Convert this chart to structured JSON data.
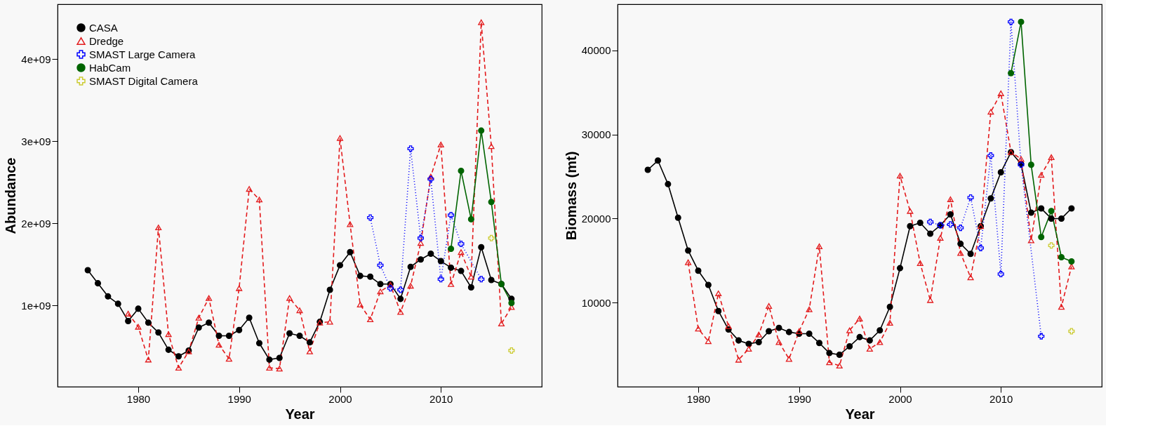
{
  "chart_data": [
    {
      "type": "line",
      "xlabel": "Year",
      "ylabel": "Abundance",
      "xlim": [
        1972,
        2020
      ],
      "xticks": [
        1980,
        1990,
        2000,
        2010
      ],
      "ylim": [
        10000000.0,
        4670000000.0
      ],
      "yticks": [
        {
          "value": 1000000000.0,
          "label": "1e+09"
        },
        {
          "value": 2000000000.0,
          "label": "2e+09"
        },
        {
          "value": 3000000000.0,
          "label": "3e+09"
        },
        {
          "value": 4000000000.0,
          "label": "4e+09"
        }
      ],
      "legend": "top left",
      "grid": false,
      "series": [
        {
          "name": "CASA",
          "color": "#000000",
          "marker": "circle",
          "line_style": "solid",
          "x": [
            1975,
            1976,
            1977,
            1978,
            1979,
            1980,
            1981,
            1982,
            1983,
            1984,
            1985,
            1986,
            1987,
            1988,
            1989,
            1990,
            1991,
            1992,
            1993,
            1994,
            1995,
            1996,
            1997,
            1998,
            1999,
            2000,
            2001,
            2002,
            2003,
            2004,
            2005,
            2006,
            2007,
            2008,
            2009,
            2010,
            2011,
            2012,
            2013,
            2014,
            2015,
            2016,
            2017
          ],
          "values": [
            1430000000.0,
            1270000000.0,
            1110000000.0,
            1020000000.0,
            810000000.0,
            960000000.0,
            790000000.0,
            670000000.0,
            460000000.0,
            380000000.0,
            450000000.0,
            730000000.0,
            790000000.0,
            630000000.0,
            630000000.0,
            700000000.0,
            850000000.0,
            540000000.0,
            340000000.0,
            360000000.0,
            660000000.0,
            630000000.0,
            550000000.0,
            800000000.0,
            1190000000.0,
            1490000000.0,
            1650000000.0,
            1360000000.0,
            1350000000.0,
            1260000000.0,
            1260000000.0,
            1080000000.0,
            1470000000.0,
            1560000000.0,
            1630000000.0,
            1540000000.0,
            1460000000.0,
            1420000000.0,
            1220000000.0,
            1710000000.0,
            1310000000.0,
            1260000000.0,
            1080000000.0
          ]
        },
        {
          "name": "Dredge",
          "color": "#e31a1c",
          "marker": "triangle",
          "line_style": "dashed",
          "x": [
            1979,
            1980,
            1981,
            1982,
            1983,
            1984,
            1985,
            1986,
            1987,
            1988,
            1989,
            1990,
            1991,
            1992,
            1993,
            1994,
            1995,
            1996,
            1997,
            1998,
            1999,
            2000,
            2001,
            2002,
            2003,
            2004,
            2005,
            2006,
            2007,
            2008,
            2009,
            2010,
            2011,
            2012,
            2013,
            2014,
            2015,
            2016,
            2017
          ],
          "values": [
            900000000.0,
            740000000.0,
            340000000.0,
            1950000000.0,
            650000000.0,
            240000000.0,
            440000000.0,
            850000000.0,
            1090000000.0,
            520000000.0,
            350000000.0,
            1210000000.0,
            2420000000.0,
            2290000000.0,
            240000000.0,
            230000000.0,
            1090000000.0,
            940000000.0,
            440000000.0,
            790000000.0,
            800000000.0,
            3040000000.0,
            1990000000.0,
            1010000000.0,
            830000000.0,
            1170000000.0,
            1250000000.0,
            920000000.0,
            1240000000.0,
            1760000000.0,
            2570000000.0,
            2960000000.0,
            1260000000.0,
            1650000000.0,
            1350000000.0,
            4450000000.0,
            2940000000.0,
            780000000.0,
            980000000.0
          ]
        },
        {
          "name": "SMAST Large Camera",
          "color": "#0000ff",
          "marker": "cross",
          "line_style": "dotted",
          "x": [
            2003,
            2004,
            2005,
            2006,
            2007,
            2008,
            2009,
            2010,
            2011,
            2012,
            2014
          ],
          "values": [
            2070000000.0,
            1490000000.0,
            1210000000.0,
            1190000000.0,
            2910000000.0,
            1820000000.0,
            2540000000.0,
            1320000000.0,
            2100000000.0,
            1750000000.0,
            1320000000.0
          ]
        },
        {
          "name": "HabCam",
          "color": "#006400",
          "marker": "circle",
          "line_style": "solid",
          "x": [
            2011,
            2012,
            2013,
            2014,
            2015,
            2016,
            2017
          ],
          "values": [
            1690000000.0,
            2640000000.0,
            2050000000.0,
            3130000000.0,
            2260000000.0,
            1260000000.0,
            1030000000.0
          ]
        },
        {
          "name": "SMAST Digital Camera",
          "type": "scatter",
          "color": "#cccc33",
          "marker": "cross",
          "x": [
            2015,
            2017
          ],
          "values": [
            1820000000.0,
            450000000.0
          ]
        }
      ]
    },
    {
      "type": "line",
      "xlabel": "Year",
      "ylabel": "Biomass (mt)",
      "xlim": [
        1972,
        2020
      ],
      "xticks": [
        1980,
        1990,
        2000,
        2010
      ],
      "ylim": [
        0,
        45500
      ],
      "yticks": [
        10000,
        20000,
        30000,
        40000
      ],
      "legend": "top left",
      "grid": false,
      "series": [
        {
          "name": "CASA",
          "color": "#000000",
          "marker": "circle",
          "line_style": "solid",
          "x": [
            1975,
            1976,
            1977,
            1978,
            1979,
            1980,
            1981,
            1982,
            1983,
            1984,
            1985,
            1986,
            1987,
            1988,
            1989,
            1990,
            1991,
            1992,
            1993,
            1994,
            1995,
            1996,
            1997,
            1998,
            1999,
            2000,
            2001,
            2002,
            2003,
            2004,
            2005,
            2006,
            2007,
            2008,
            2009,
            2010,
            2011,
            2012,
            2013,
            2014,
            2015,
            2016,
            2017
          ],
          "values": [
            25800,
            26900,
            24100,
            20100,
            16200,
            13800,
            12100,
            9000,
            6800,
            5500,
            5100,
            5300,
            6600,
            7000,
            6500,
            6300,
            6300,
            5200,
            4000,
            3800,
            4800,
            5900,
            5500,
            6700,
            9500,
            14100,
            19100,
            19500,
            18200,
            19200,
            20500,
            17000,
            15800,
            19100,
            22400,
            25500,
            27900,
            26500,
            20700,
            21200,
            20000,
            20000,
            21200
          ]
        },
        {
          "name": "Dredge",
          "color": "#e31a1c",
          "marker": "triangle",
          "line_style": "dashed",
          "x": [
            1979,
            1980,
            1981,
            1982,
            1983,
            1984,
            1985,
            1986,
            1987,
            1988,
            1989,
            1990,
            1991,
            1992,
            1993,
            1994,
            1995,
            1996,
            1997,
            1998,
            1999,
            2000,
            2001,
            2002,
            2003,
            2004,
            2005,
            2006,
            2007,
            2008,
            2009,
            2010,
            2011,
            2012,
            2013,
            2014,
            2015,
            2016,
            2017
          ],
          "values": [
            14800,
            6900,
            5400,
            11100,
            7200,
            3200,
            4500,
            6200,
            9600,
            5300,
            3300,
            6600,
            9200,
            16700,
            2900,
            2500,
            6700,
            8100,
            4500,
            5300,
            7600,
            25100,
            20900,
            14700,
            10300,
            17700,
            22300,
            15900,
            13000,
            19100,
            32700,
            34900,
            27900,
            27100,
            17400,
            25200,
            27300,
            9500,
            14300
          ]
        },
        {
          "name": "SMAST Large Camera",
          "color": "#0000ff",
          "marker": "cross",
          "line_style": "dotted",
          "x": [
            2003,
            2004,
            2005,
            2006,
            2007,
            2008,
            2009,
            2010,
            2011,
            2012,
            2014
          ],
          "values": [
            19600,
            19200,
            19300,
            18900,
            22500,
            16500,
            27500,
            13400,
            43400,
            26400,
            6000
          ]
        },
        {
          "name": "HabCam",
          "color": "#006400",
          "marker": "circle",
          "line_style": "solid",
          "x": [
            2011,
            2012,
            2013,
            2014,
            2015,
            2016,
            2017
          ],
          "values": [
            37300,
            43400,
            26400,
            17800,
            20900,
            15400,
            14900
          ]
        },
        {
          "name": "SMAST Digital Camera",
          "type": "scatter",
          "color": "#cccc33",
          "marker": "cross",
          "x": [
            2015,
            2017
          ],
          "values": [
            16800,
            6600
          ]
        }
      ]
    }
  ]
}
